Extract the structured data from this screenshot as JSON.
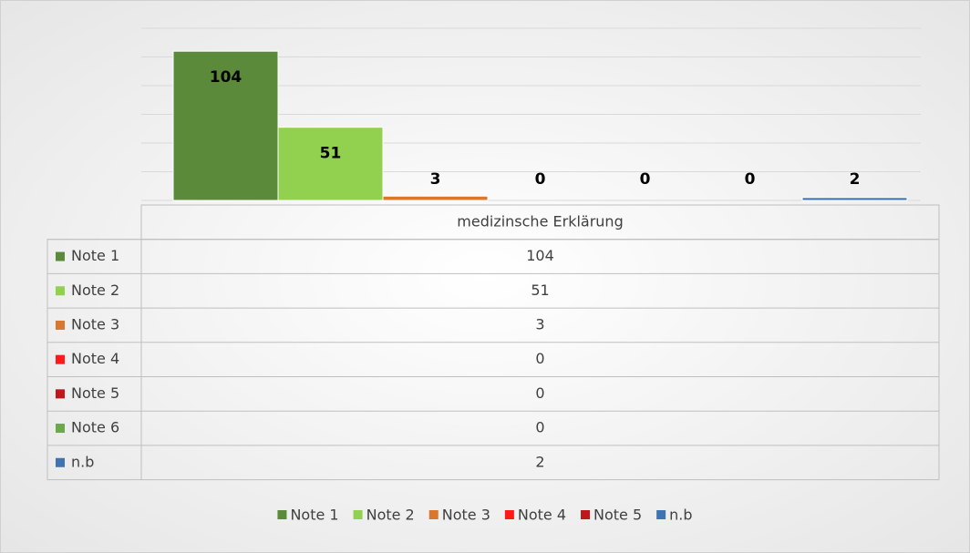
{
  "chart_data": {
    "type": "bar",
    "categories": [
      "medizinsche Erklärung"
    ],
    "series": [
      {
        "name": "Note 1",
        "color": "#5a8a3a",
        "values": [
          104
        ]
      },
      {
        "name": "Note 2",
        "color": "#92d050",
        "values": [
          51
        ]
      },
      {
        "name": "Note 3",
        "color": "#d9772e",
        "values": [
          3
        ]
      },
      {
        "name": "Note 4",
        "color": "#ff1a1a",
        "values": [
          0
        ]
      },
      {
        "name": "Note 5",
        "color": "#c0171c",
        "values": [
          0
        ]
      },
      {
        "name": "Note 6",
        "color": "#6aaa4a",
        "values": [
          0
        ]
      },
      {
        "name": "n.b",
        "color": "#3f74b0",
        "values": [
          2
        ]
      }
    ],
    "legend": [
      "Note 1",
      "Note 2",
      "Note 3",
      "Note 4",
      "Note 5",
      "n.b"
    ],
    "ylim": [
      0,
      120
    ],
    "yticks": [
      0,
      20,
      40,
      60,
      80,
      100,
      120
    ],
    "grid": true
  }
}
